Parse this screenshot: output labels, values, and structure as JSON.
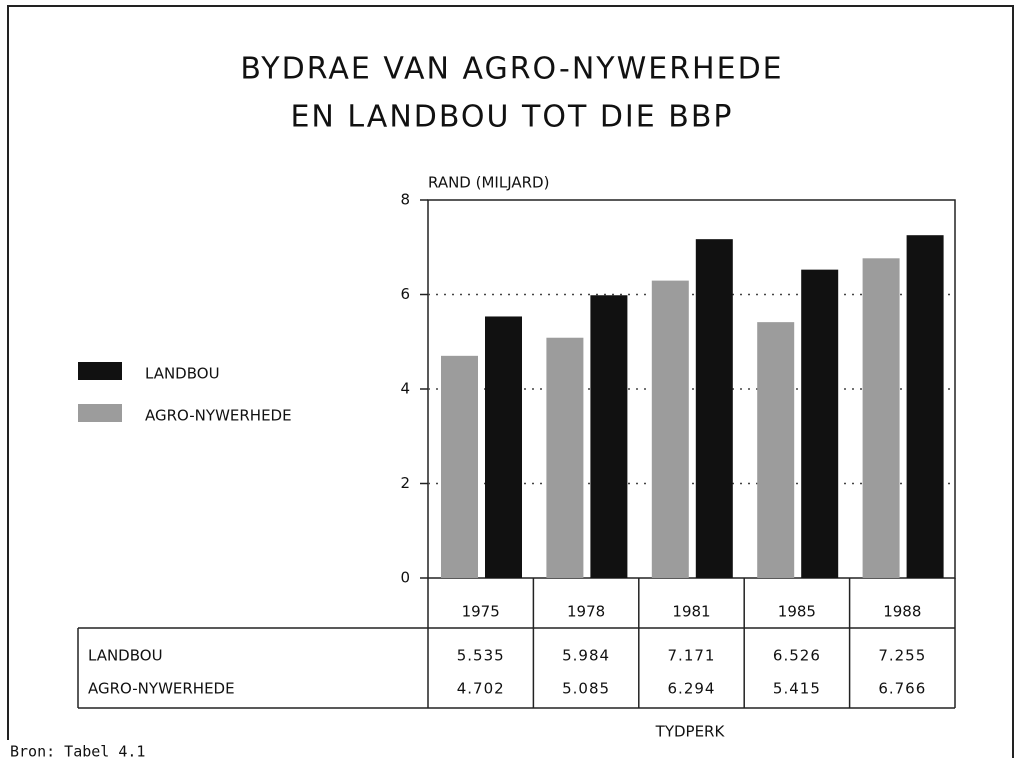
{
  "chart_data": {
    "type": "bar",
    "title": [
      "BYDRAE VAN AGRO-NYWERHEDE",
      "EN LANDBOU TOT DIE BBP"
    ],
    "y_label": "RAND (MILJARD)",
    "x_label": "TYDPERK",
    "source": "Bron: Tabel 4.1",
    "categories": [
      "1975",
      "1978",
      "1981",
      "1985",
      "1988"
    ],
    "series": [
      {
        "name": "AGRO-NYWERHEDE",
        "color": "#9c9c9c",
        "values": [
          4.702,
          5.085,
          6.294,
          5.415,
          6.766
        ]
      },
      {
        "name": "LANDBOU",
        "color": "#111111",
        "values": [
          5.535,
          5.984,
          7.171,
          6.526,
          7.255
        ]
      }
    ],
    "ylim": [
      0,
      8
    ],
    "yticks": [
      0,
      2,
      4,
      6,
      8
    ],
    "grid": true
  }
}
